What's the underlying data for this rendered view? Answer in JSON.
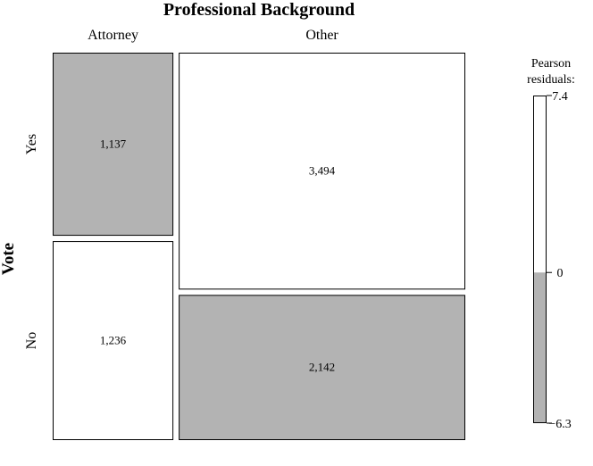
{
  "chart_data": {
    "type": "mosaic",
    "title": "Professional Background",
    "xlabel": "",
    "ylabel": "Vote",
    "column_categories": [
      "Attorney",
      "Other"
    ],
    "row_categories": [
      "Yes",
      "No"
    ],
    "cells": [
      {
        "column": "Attorney",
        "row": "Yes",
        "count": 1137,
        "label": "1,137",
        "shaded": true
      },
      {
        "column": "Attorney",
        "row": "No",
        "count": 1236,
        "label": "1,236",
        "shaded": false
      },
      {
        "column": "Other",
        "row": "Yes",
        "count": 3494,
        "label": "3,494",
        "shaded": false
      },
      {
        "column": "Other",
        "row": "No",
        "count": 2142,
        "label": "2,142",
        "shaded": true
      }
    ],
    "legend": {
      "title_line1": "Pearson",
      "title_line2": "residuals:",
      "max": 7.4,
      "min": -6.3,
      "ticks": [
        {
          "value": 7.4,
          "label": "7.4"
        },
        {
          "value": 0,
          "label": "0"
        },
        {
          "value": -6.3,
          "label": "−6.3"
        }
      ],
      "positive_color": "#ffffff",
      "negative_color": "#b3b3b3"
    },
    "colors": {
      "shaded_cell": "#b3b3b3",
      "unshaded_cell": "#ffffff",
      "border": "#000000"
    }
  }
}
